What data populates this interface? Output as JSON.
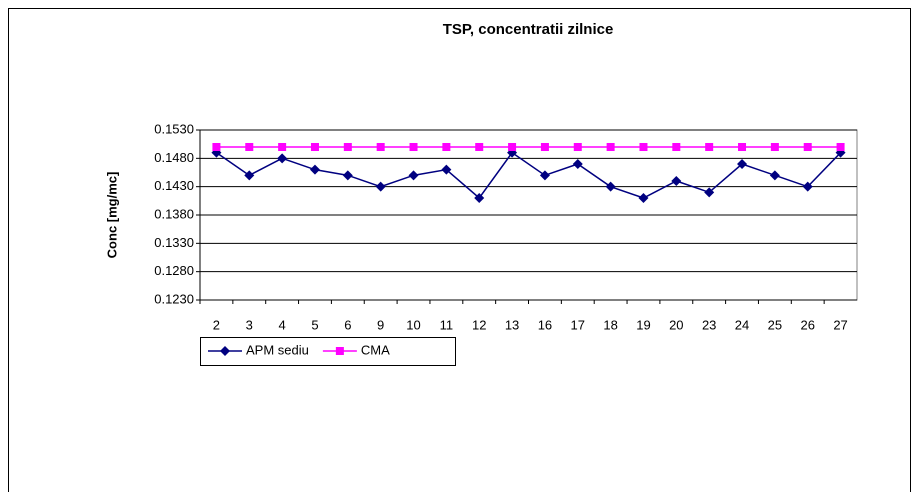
{
  "chart_data": {
    "type": "line",
    "title": "TSP, concentratii zilnice",
    "ylabel": "Conc [mg/mc]",
    "categories": [
      "2",
      "3",
      "4",
      "5",
      "6",
      "9",
      "10",
      "11",
      "12",
      "13",
      "16",
      "17",
      "18",
      "19",
      "20",
      "23",
      "24",
      "25",
      "26",
      "27"
    ],
    "series": [
      {
        "name": "APM sediu",
        "color": "#000080",
        "marker": "diamond",
        "values": [
          0.149,
          0.145,
          0.148,
          0.146,
          0.145,
          0.143,
          0.145,
          0.146,
          0.141,
          0.149,
          0.145,
          0.147,
          0.143,
          0.141,
          0.144,
          0.142,
          0.147,
          0.145,
          0.143,
          0.149
        ]
      },
      {
        "name": "CMA",
        "color": "#ff00ff",
        "marker": "square",
        "values": [
          0.15,
          0.15,
          0.15,
          0.15,
          0.15,
          0.15,
          0.15,
          0.15,
          0.15,
          0.15,
          0.15,
          0.15,
          0.15,
          0.15,
          0.15,
          0.15,
          0.15,
          0.15,
          0.15,
          0.15
        ]
      }
    ],
    "ylim": [
      0.123,
      0.153
    ],
    "yticks": [
      {
        "value": 0.123,
        "label": "0.1230"
      },
      {
        "value": 0.128,
        "label": "0.1280"
      },
      {
        "value": 0.133,
        "label": "0.1330"
      },
      {
        "value": 0.138,
        "label": "0.1380"
      },
      {
        "value": 0.143,
        "label": "0.1430"
      },
      {
        "value": 0.148,
        "label": "0.1480"
      },
      {
        "value": 0.153,
        "label": "0.1530"
      }
    ],
    "grid": true,
    "legend": "bottom-left"
  }
}
